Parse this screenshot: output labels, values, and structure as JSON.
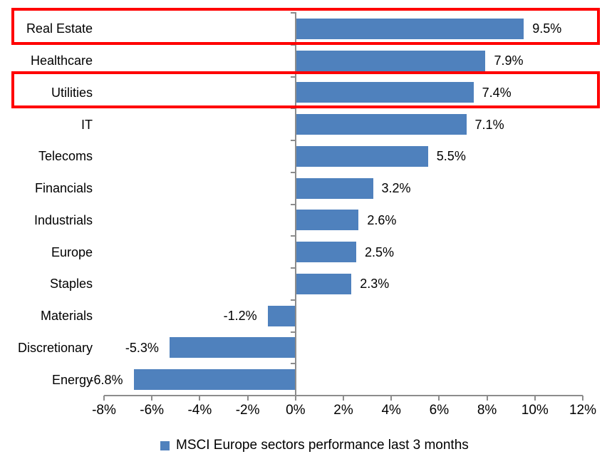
{
  "chart_data": {
    "type": "bar",
    "orientation": "horizontal",
    "title": "",
    "xlabel": "",
    "ylabel": "",
    "categories": [
      "Real Estate",
      "Healthcare",
      "Utilities",
      "IT",
      "Telecoms",
      "Financials",
      "Industrials",
      "Europe",
      "Staples",
      "Materials",
      "Discretionary",
      "Energy"
    ],
    "values": [
      9.5,
      7.9,
      7.4,
      7.1,
      5.5,
      3.2,
      2.6,
      2.5,
      2.3,
      -1.2,
      -5.3,
      -6.8
    ],
    "value_labels": [
      "9.5%",
      "7.9%",
      "7.4%",
      "7.1%",
      "5.5%",
      "3.2%",
      "2.6%",
      "2.5%",
      "2.3%",
      "-1.2%",
      "-5.3%",
      "-6.8%"
    ],
    "series_name": "MSCI Europe sectors performance last 3 months",
    "xlim": [
      -8,
      12
    ],
    "x_tick_step": 2,
    "x_tick_labels": [
      "-8%",
      "-6%",
      "-4%",
      "-2%",
      "0%",
      "2%",
      "4%",
      "6%",
      "8%",
      "10%",
      "12%"
    ],
    "grid": false,
    "legend_position": "bottom-center",
    "highlighted_categories": [
      "Real Estate",
      "Utilities"
    ],
    "colors": {
      "bar": "#4F81BD",
      "axis": "#8C8C8C",
      "highlight": "#FF0000",
      "text": "#000000"
    }
  },
  "legend": {
    "label": "MSCI Europe sectors performance last 3 months"
  }
}
